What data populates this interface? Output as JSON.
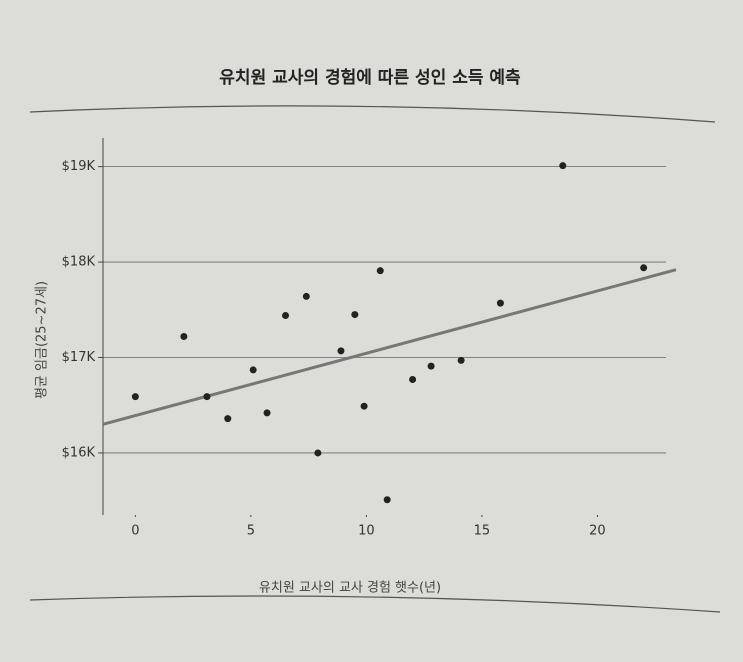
{
  "chart_data": {
    "type": "scatter",
    "title": "유치원 교사의 경험에 따른 성인 소득 예측",
    "x_label": "유치원 교사의 교사 경험 햇수(년)",
    "y_label": "평균 임금(25~27세)",
    "x": [
      0,
      2.1,
      3.1,
      4.0,
      5.1,
      5.7,
      6.5,
      7.4,
      7.9,
      8.9,
      9.5,
      9.9,
      10.6,
      10.9,
      12.0,
      12.8,
      14.1,
      15.8,
      18.5,
      22.0
    ],
    "y": [
      16590,
      17220,
      16590,
      16360,
      16870,
      16420,
      17440,
      17640,
      16000,
      17070,
      17450,
      16490,
      17910,
      15510,
      16770,
      16910,
      16970,
      17570,
      19010,
      17940
    ],
    "color": "#222222",
    "trendline": {
      "x": [
        -1.4,
        23.4
      ],
      "y": [
        16300,
        17920
      ],
      "color": "#777777"
    },
    "xlim": [
      -1.4,
      23.4
    ],
    "ylim": [
      15350,
      19300
    ],
    "xticks": [
      0,
      5,
      10,
      15,
      20
    ],
    "yticks": [
      {
        "value": 16000,
        "label": "$16K"
      },
      {
        "value": 17000,
        "label": "$17K"
      },
      {
        "value": 18000,
        "label": "$18K"
      },
      {
        "value": 19000,
        "label": "$19K"
      }
    ],
    "grid": true
  }
}
